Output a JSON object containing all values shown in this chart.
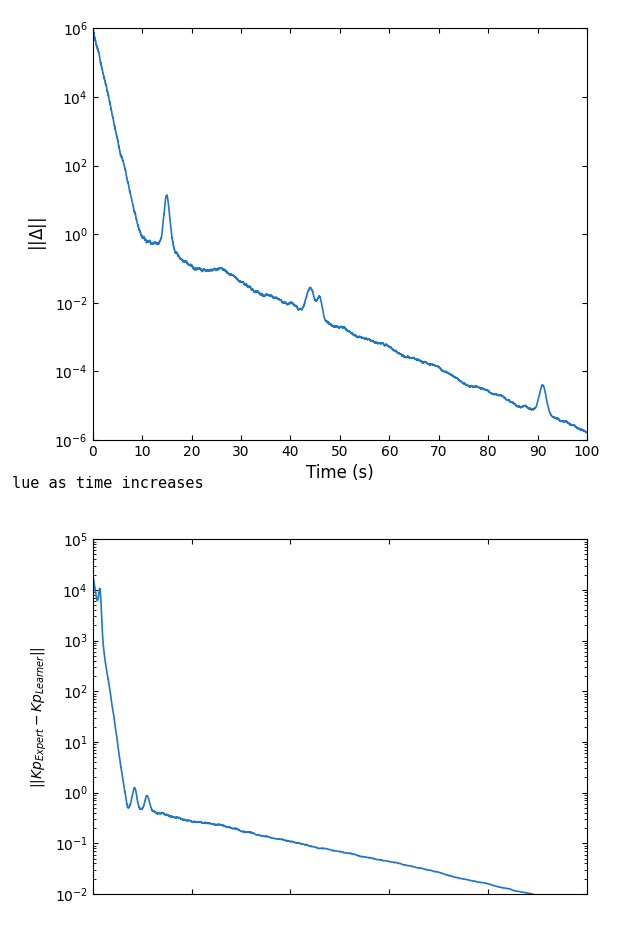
{
  "line_color": "#2176c7",
  "line_width": 1.2,
  "background_color": "#ffffff",
  "fig_width": 6.18,
  "fig_height": 9.46,
  "dpi": 100,
  "plot1": {
    "xlabel": "Time (s)",
    "ylabel": "$||\\Delta||$",
    "xlim": [
      0,
      100
    ],
    "ylim": [
      1e-06,
      1000000.0
    ],
    "xticks": [
      0,
      10,
      20,
      30,
      40,
      50,
      60,
      70,
      80,
      90,
      100
    ]
  },
  "plot2": {
    "ylabel": "$||Kp_{Expert} - Kp_{Learner}||$",
    "ylim": [
      0.01,
      100000.0
    ],
    "xlim": [
      0,
      100
    ]
  },
  "caption": "lue as time increases"
}
